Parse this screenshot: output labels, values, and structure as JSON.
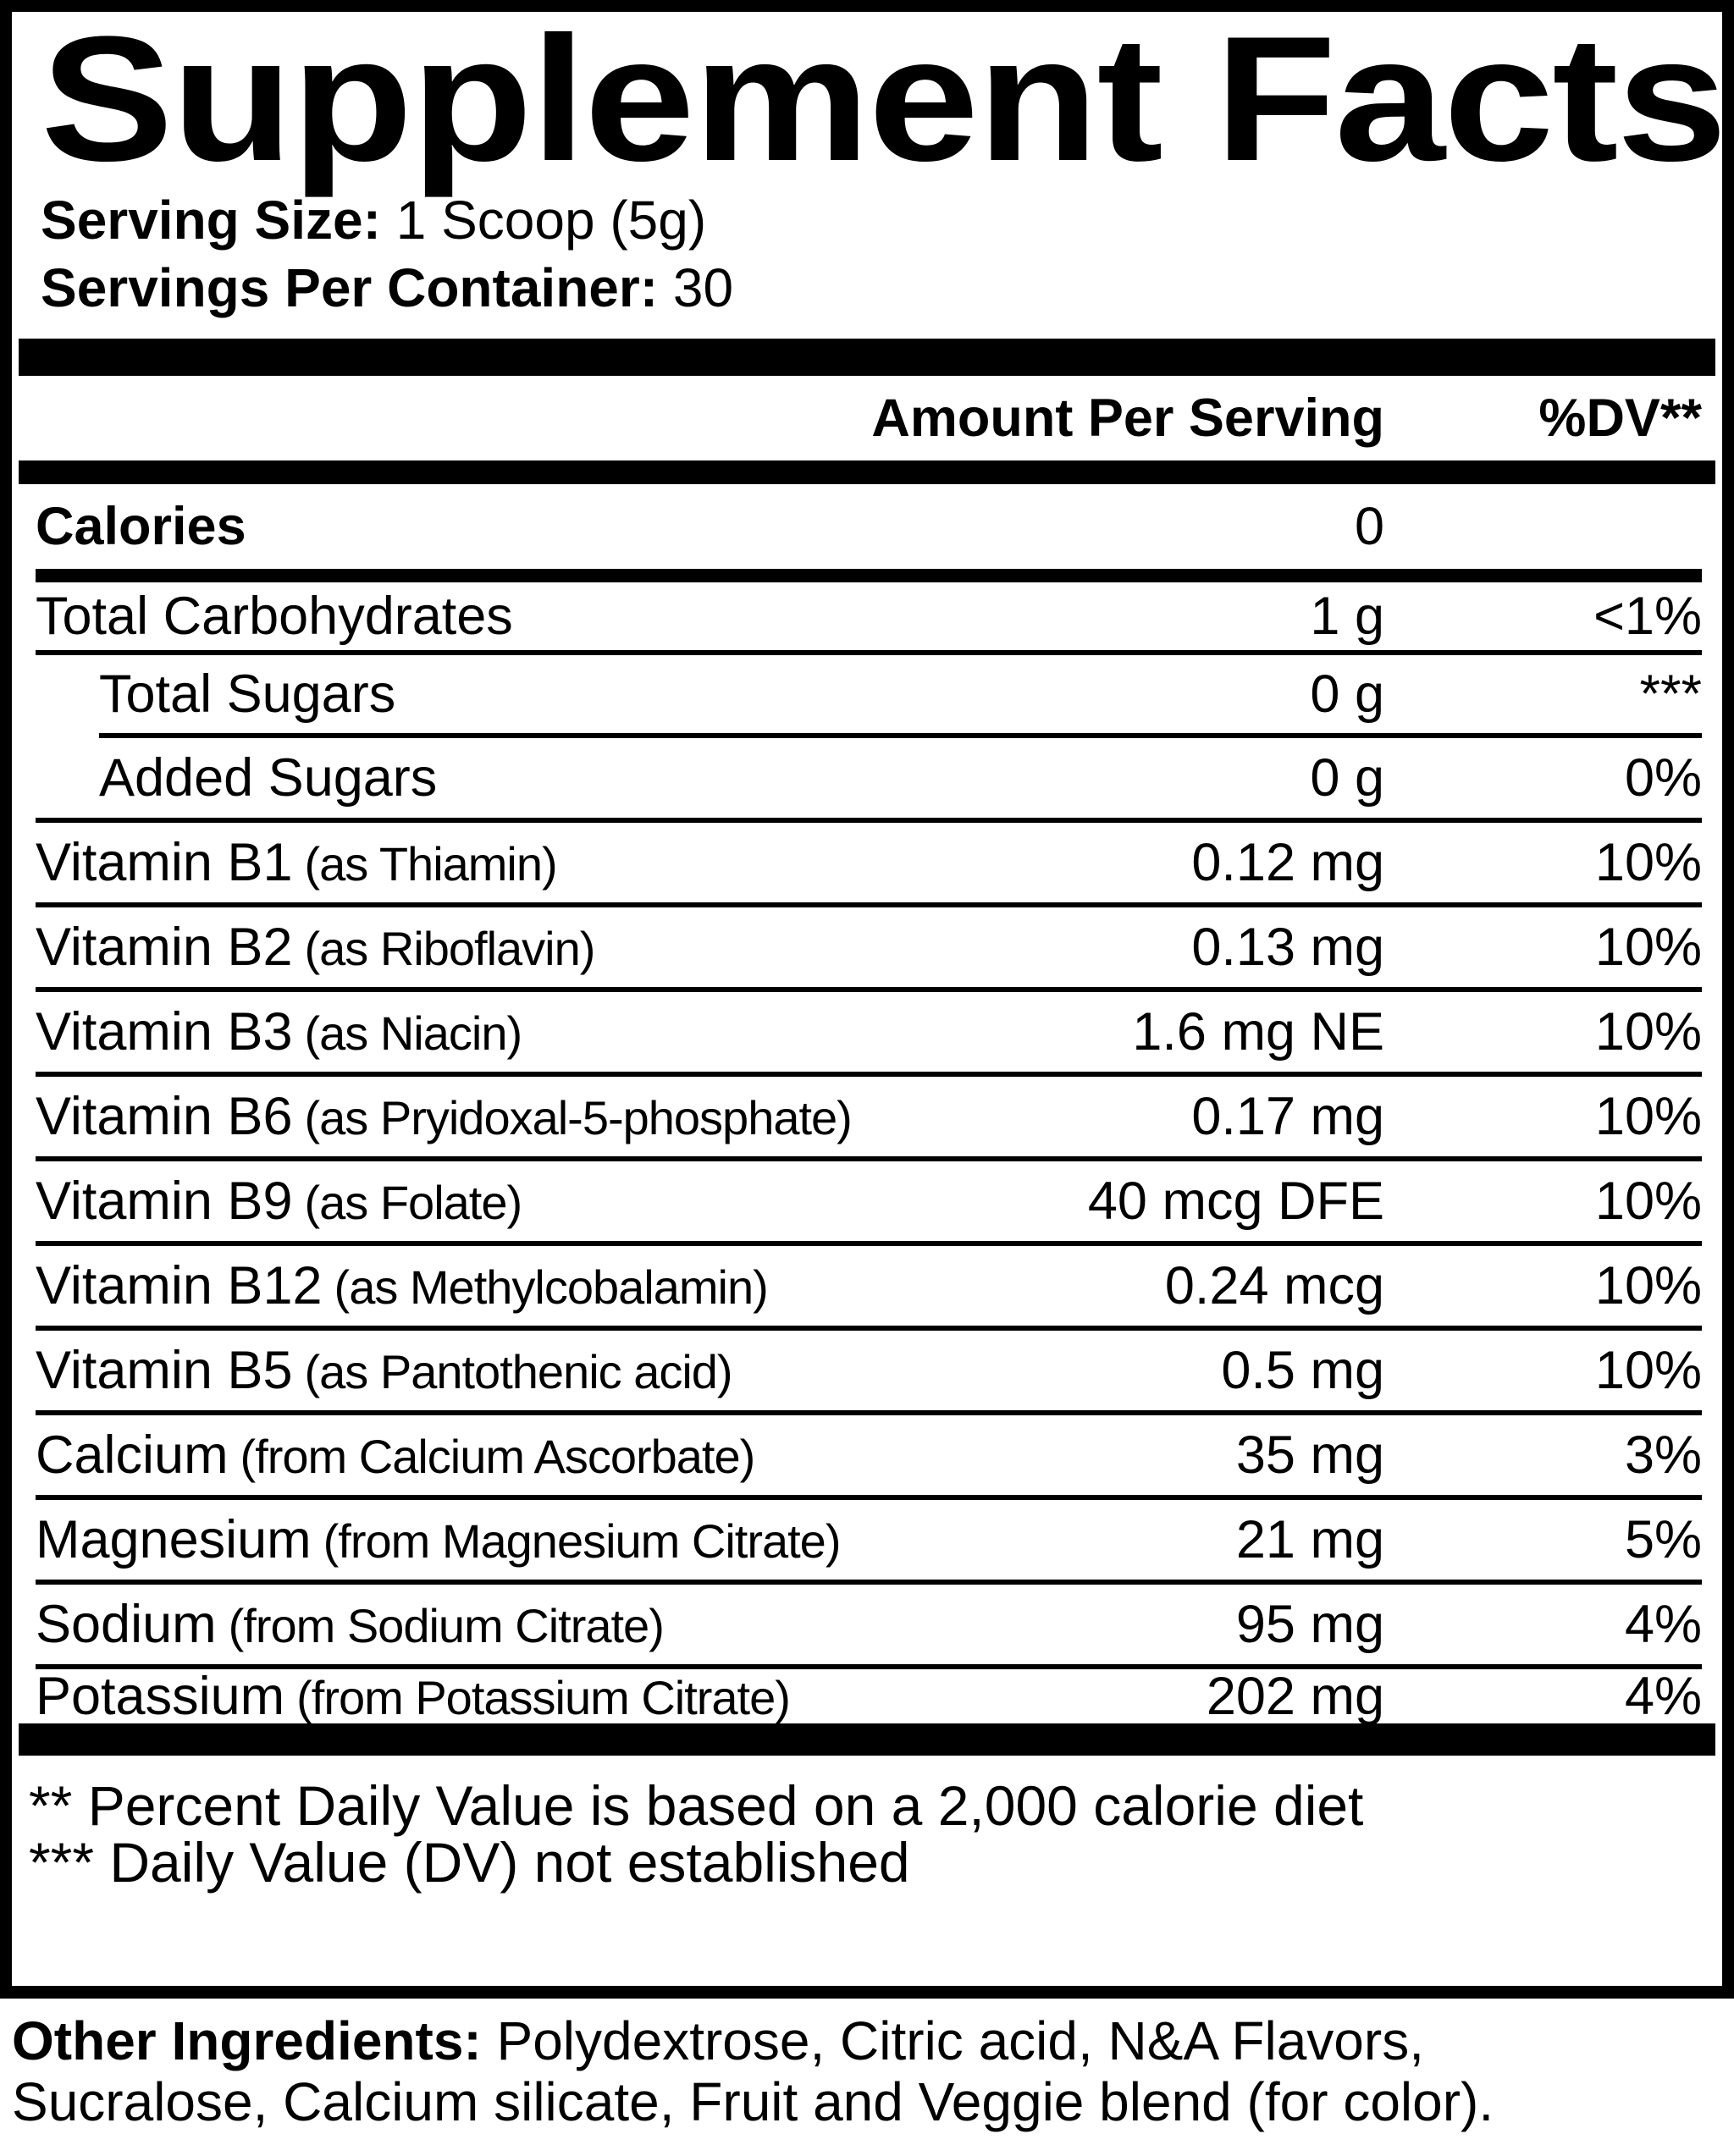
{
  "label": {
    "title": "Supplement Facts",
    "serving": {
      "size_label": "Serving Size:",
      "size_value": "1 Scoop (5g)",
      "count_label": "Servings Per Container:",
      "count_value": "30"
    },
    "header": {
      "amount": "Amount Per Serving",
      "dv": "%DV**"
    },
    "calories": {
      "name": "Calories",
      "amount": "0"
    },
    "rows": [
      {
        "name": "Total Carbohydrates",
        "detail": "",
        "amount": "1 g",
        "dv": "<1%"
      },
      {
        "name": "Total Sugars",
        "detail": "",
        "amount": "0 g",
        "dv": "***"
      },
      {
        "name": "Added Sugars",
        "detail": "",
        "amount": "0 g",
        "dv": "0%"
      },
      {
        "name": "Vitamin B1",
        "detail": "(as Thiamin)",
        "amount": "0.12 mg",
        "dv": "10%"
      },
      {
        "name": "Vitamin B2",
        "detail": "(as Riboflavin)",
        "amount": "0.13 mg",
        "dv": "10%"
      },
      {
        "name": "Vitamin B3",
        "detail": "(as Niacin)",
        "amount": "1.6 mg NE",
        "dv": "10%"
      },
      {
        "name": "Vitamin B6",
        "detail": "(as Pryidoxal-5-phosphate)",
        "amount": "0.17 mg",
        "dv": "10%"
      },
      {
        "name": "Vitamin B9",
        "detail": "(as Folate)",
        "amount": "40 mcg DFE",
        "dv": "10%"
      },
      {
        "name": "Vitamin B12",
        "detail": "(as Methylcobalamin)",
        "amount": "0.24 mcg",
        "dv": "10%"
      },
      {
        "name": "Vitamin B5",
        "detail": "(as Pantothenic acid)",
        "amount": "0.5 mg",
        "dv": "10%"
      },
      {
        "name": "Calcium",
        "detail": "(from Calcium Ascorbate)",
        "amount": "35 mg",
        "dv": "3%"
      },
      {
        "name": "Magnesium",
        "detail": "(from Magnesium Citrate)",
        "amount": "21 mg",
        "dv": "5%"
      },
      {
        "name": "Sodium",
        "detail": "(from Sodium Citrate)",
        "amount": "95 mg",
        "dv": "4%"
      },
      {
        "name": "Potassium",
        "detail": "(from Potassium Citrate)",
        "amount": "202 mg",
        "dv": "4%"
      }
    ],
    "footnotes": [
      "** Percent Daily Value is based on a 2,000 calorie diet",
      "*** Daily Value (DV) not established"
    ],
    "other_ingredients": {
      "label": "Other Ingredients:",
      "line1": "Polydextrose, Citric acid, N&A Flavors,",
      "line2": "Sucralose, Calcium silicate, Fruit and Veggie blend (for color)."
    }
  },
  "colors": {
    "ink": "#000000",
    "paper": "#ffffff"
  }
}
